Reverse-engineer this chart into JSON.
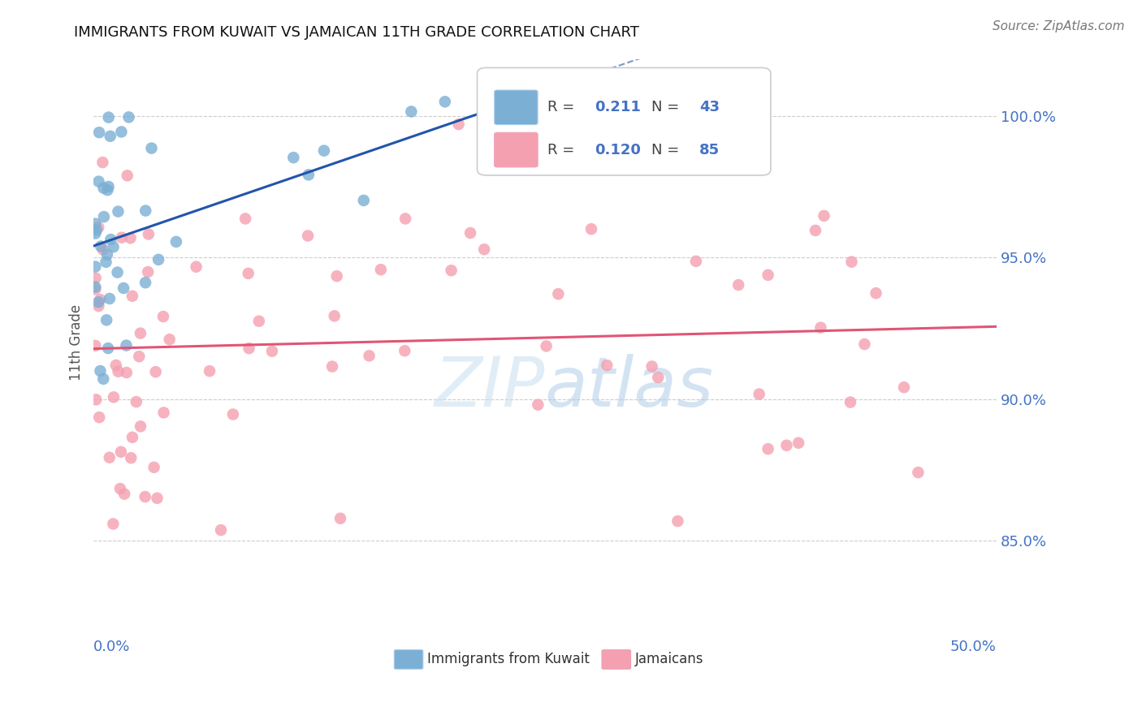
{
  "title": "IMMIGRANTS FROM KUWAIT VS JAMAICAN 11TH GRADE CORRELATION CHART",
  "source": "Source: ZipAtlas.com",
  "ylabel": "11th Grade",
  "ylabel_ticks": [
    "85.0%",
    "90.0%",
    "95.0%",
    "100.0%"
  ],
  "ylabel_tick_vals": [
    0.85,
    0.9,
    0.95,
    1.0
  ],
  "xmin": 0.0,
  "xmax": 0.5,
  "ymin": 0.82,
  "ymax": 1.02,
  "legend_r_blue": "0.211",
  "legend_n_blue": "43",
  "legend_r_pink": "0.120",
  "legend_n_pink": "85",
  "blue_color": "#7bafd4",
  "pink_color": "#f4a0b0",
  "blue_line_color": "#2255aa",
  "pink_line_color": "#e05575",
  "title_fontsize": 13,
  "tick_label_fontsize": 13,
  "source_fontsize": 11
}
